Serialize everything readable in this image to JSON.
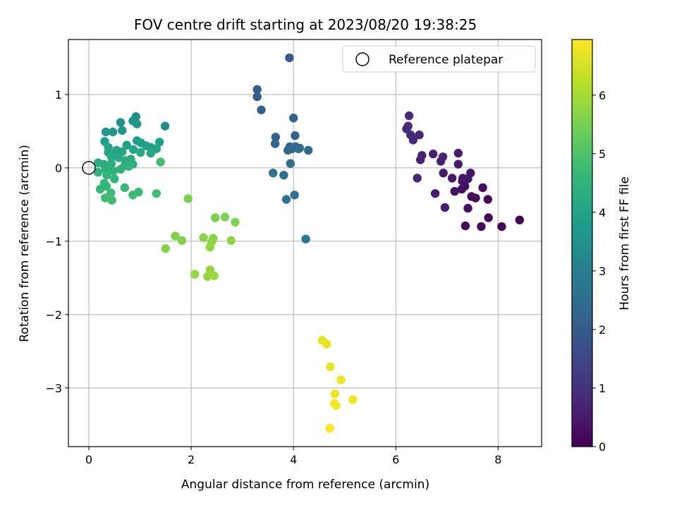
{
  "chart_data": {
    "type": "scatter",
    "title": "FOV centre drift starting at 2023/08/20 19:38:25",
    "xlabel": "Angular distance from reference (arcmin)",
    "ylabel": "Rotation from reference (arcmin)",
    "xlim": [
      -0.4,
      8.85
    ],
    "ylim": [
      -3.8,
      1.75
    ],
    "x_ticks": [
      0,
      2,
      4,
      6,
      8
    ],
    "y_ticks": [
      -3,
      -2,
      -1,
      0,
      1
    ],
    "grid": true,
    "legend": {
      "position": "top-right",
      "entries": [
        "Reference platepar"
      ]
    },
    "reference_point": {
      "name": "Reference platepar",
      "x": 0,
      "y": 0
    },
    "colorbar": {
      "label": "Hours from first FF file",
      "colormap": "viridis",
      "range": [
        0,
        6.95
      ],
      "ticks": [
        0,
        1,
        2,
        3,
        4,
        5,
        6
      ]
    },
    "colormap_stops": [
      "#440154",
      "#482878",
      "#3e4989",
      "#31688e",
      "#26828e",
      "#1f9e89",
      "#35b779",
      "#6ece58",
      "#b5de2b",
      "#fde725"
    ],
    "points": [
      {
        "x": 8.42,
        "y": -0.71,
        "t": 0.02
      },
      {
        "x": 8.07,
        "y": -0.8,
        "t": 0.05
      },
      {
        "x": 7.81,
        "y": -0.68,
        "t": 0.08
      },
      {
        "x": 7.67,
        "y": -0.8,
        "t": 0.1
      },
      {
        "x": 7.36,
        "y": -0.79,
        "t": 0.12
      },
      {
        "x": 7.8,
        "y": -0.43,
        "t": 0.15
      },
      {
        "x": 7.56,
        "y": -0.41,
        "t": 0.18
      },
      {
        "x": 7.48,
        "y": -0.39,
        "t": 0.2
      },
      {
        "x": 7.7,
        "y": -0.27,
        "t": 0.22
      },
      {
        "x": 7.41,
        "y": -0.55,
        "t": 0.25
      },
      {
        "x": 7.29,
        "y": -0.29,
        "t": 0.28
      },
      {
        "x": 7.15,
        "y": -0.32,
        "t": 0.3
      },
      {
        "x": 7.35,
        "y": -0.25,
        "t": 0.32
      },
      {
        "x": 7.3,
        "y": -0.18,
        "t": 0.35
      },
      {
        "x": 7.41,
        "y": -0.15,
        "t": 0.38
      },
      {
        "x": 7.46,
        "y": -0.07,
        "t": 0.4
      },
      {
        "x": 7.31,
        "y": -0.14,
        "t": 0.42
      },
      {
        "x": 7.1,
        "y": -0.14,
        "t": 0.45
      },
      {
        "x": 6.93,
        "y": -0.07,
        "t": 0.48
      },
      {
        "x": 7.22,
        "y": 0.05,
        "t": 0.5
      },
      {
        "x": 6.77,
        "y": -0.35,
        "t": 0.52
      },
      {
        "x": 6.96,
        "y": -0.54,
        "t": 0.55
      },
      {
        "x": 7.22,
        "y": 0.2,
        "t": 0.58
      },
      {
        "x": 6.88,
        "y": 0.09,
        "t": 0.6
      },
      {
        "x": 6.92,
        "y": 0.15,
        "t": 0.62
      },
      {
        "x": 6.73,
        "y": 0.19,
        "t": 0.65
      },
      {
        "x": 6.51,
        "y": 0.17,
        "t": 0.68
      },
      {
        "x": 6.48,
        "y": 0.11,
        "t": 0.7
      },
      {
        "x": 6.42,
        "y": -0.14,
        "t": 0.72
      },
      {
        "x": 6.46,
        "y": 0.45,
        "t": 0.75
      },
      {
        "x": 6.34,
        "y": 0.38,
        "t": 0.78
      },
      {
        "x": 6.29,
        "y": 0.45,
        "t": 0.8
      },
      {
        "x": 6.21,
        "y": 0.53,
        "t": 0.82
      },
      {
        "x": 6.24,
        "y": 0.57,
        "t": 0.85
      },
      {
        "x": 6.26,
        "y": 0.71,
        "t": 0.88
      },
      {
        "x": 3.92,
        "y": 1.5,
        "t": 2.0
      },
      {
        "x": 3.29,
        "y": 1.07,
        "t": 2.05
      },
      {
        "x": 3.29,
        "y": 0.97,
        "t": 2.08
      },
      {
        "x": 3.37,
        "y": 0.79,
        "t": 2.12
      },
      {
        "x": 4.0,
        "y": 0.68,
        "t": 2.15
      },
      {
        "x": 4.03,
        "y": 0.44,
        "t": 2.18
      },
      {
        "x": 3.65,
        "y": 0.42,
        "t": 2.22
      },
      {
        "x": 3.64,
        "y": 0.33,
        "t": 2.25
      },
      {
        "x": 3.89,
        "y": 0.24,
        "t": 2.28
      },
      {
        "x": 3.93,
        "y": 0.29,
        "t": 2.32
      },
      {
        "x": 3.97,
        "y": 0.26,
        "t": 2.35
      },
      {
        "x": 4.04,
        "y": 0.29,
        "t": 2.38
      },
      {
        "x": 4.1,
        "y": 0.26,
        "t": 2.42
      },
      {
        "x": 4.12,
        "y": 0.27,
        "t": 2.45
      },
      {
        "x": 4.29,
        "y": 0.24,
        "t": 2.48
      },
      {
        "x": 3.94,
        "y": 0.06,
        "t": 2.52
      },
      {
        "x": 3.6,
        "y": -0.07,
        "t": 2.55
      },
      {
        "x": 3.81,
        "y": -0.1,
        "t": 2.58
      },
      {
        "x": 4.02,
        "y": -0.37,
        "t": 2.62
      },
      {
        "x": 3.86,
        "y": -0.43,
        "t": 2.65
      },
      {
        "x": 4.24,
        "y": -0.97,
        "t": 2.7
      },
      {
        "x": 1.49,
        "y": 0.57,
        "t": 3.4
      },
      {
        "x": 0.92,
        "y": 0.7,
        "t": 3.45
      },
      {
        "x": 0.62,
        "y": 0.62,
        "t": 3.5
      },
      {
        "x": 0.86,
        "y": 0.64,
        "t": 3.55
      },
      {
        "x": 0.94,
        "y": 0.6,
        "t": 3.6
      },
      {
        "x": 0.47,
        "y": 0.49,
        "t": 3.65
      },
      {
        "x": 0.65,
        "y": 0.51,
        "t": 3.7
      },
      {
        "x": 0.33,
        "y": 0.49,
        "t": 3.75
      },
      {
        "x": 0.31,
        "y": 0.36,
        "t": 3.8
      },
      {
        "x": 0.94,
        "y": 0.37,
        "t": 3.85
      },
      {
        "x": 1.02,
        "y": 0.34,
        "t": 3.88
      },
      {
        "x": 1.12,
        "y": 0.3,
        "t": 3.9
      },
      {
        "x": 1.21,
        "y": 0.28,
        "t": 3.92
      },
      {
        "x": 1.38,
        "y": 0.35,
        "t": 3.95
      },
      {
        "x": 1.32,
        "y": 0.26,
        "t": 3.98
      },
      {
        "x": 0.74,
        "y": 0.31,
        "t": 4.0
      },
      {
        "x": 0.54,
        "y": 0.24,
        "t": 4.02
      },
      {
        "x": 0.38,
        "y": 0.28,
        "t": 4.05
      },
      {
        "x": 0.38,
        "y": 0.21,
        "t": 4.08
      },
      {
        "x": 0.65,
        "y": 0.22,
        "t": 4.1
      },
      {
        "x": 0.87,
        "y": 0.25,
        "t": 4.12
      },
      {
        "x": 1.01,
        "y": 0.21,
        "t": 4.15
      },
      {
        "x": 1.21,
        "y": 0.2,
        "t": 4.18
      },
      {
        "x": 0.44,
        "y": 0.15,
        "t": 4.2
      },
      {
        "x": 0.58,
        "y": 0.14,
        "t": 4.22
      },
      {
        "x": 0.71,
        "y": 0.1,
        "t": 4.25
      },
      {
        "x": 0.82,
        "y": 0.12,
        "t": 4.28
      },
      {
        "x": 0.18,
        "y": 0.07,
        "t": 4.3
      },
      {
        "x": 0.29,
        "y": 0.05,
        "t": 4.32
      },
      {
        "x": 0.44,
        "y": 0.06,
        "t": 4.35
      },
      {
        "x": 0.7,
        "y": 0.03,
        "t": 4.38
      },
      {
        "x": 0.86,
        "y": 0.05,
        "t": 4.4
      },
      {
        "x": 0.33,
        "y": -0.02,
        "t": 4.42
      },
      {
        "x": 0.48,
        "y": -0.04,
        "t": 4.45
      },
      {
        "x": 0.62,
        "y": -0.02,
        "t": 4.48
      },
      {
        "x": 0.78,
        "y": 0.02,
        "t": 4.5
      },
      {
        "x": 0.18,
        "y": -0.06,
        "t": 4.52
      },
      {
        "x": 0.35,
        "y": -0.1,
        "t": 4.55
      },
      {
        "x": 0.5,
        "y": -0.15,
        "t": 4.58
      },
      {
        "x": 0.3,
        "y": -0.21,
        "t": 4.6
      },
      {
        "x": 0.34,
        "y": -0.25,
        "t": 4.62
      },
      {
        "x": 0.22,
        "y": -0.29,
        "t": 4.65
      },
      {
        "x": 0.7,
        "y": -0.27,
        "t": 4.68
      },
      {
        "x": 0.97,
        "y": -0.33,
        "t": 4.7
      },
      {
        "x": 0.86,
        "y": -0.37,
        "t": 4.72
      },
      {
        "x": 0.43,
        "y": -0.34,
        "t": 4.75
      },
      {
        "x": 0.32,
        "y": -0.41,
        "t": 4.78
      },
      {
        "x": 0.45,
        "y": -0.44,
        "t": 4.8
      },
      {
        "x": 1.32,
        "y": -0.35,
        "t": 4.82
      },
      {
        "x": 1.4,
        "y": 0.08,
        "t": 4.85
      },
      {
        "x": 1.94,
        "y": -0.42,
        "t": 5.5
      },
      {
        "x": 2.47,
        "y": -0.68,
        "t": 5.52
      },
      {
        "x": 2.66,
        "y": -0.67,
        "t": 5.55
      },
      {
        "x": 2.86,
        "y": -0.74,
        "t": 5.58
      },
      {
        "x": 1.69,
        "y": -0.93,
        "t": 5.6
      },
      {
        "x": 1.82,
        "y": -0.99,
        "t": 5.62
      },
      {
        "x": 1.5,
        "y": -1.1,
        "t": 5.65
      },
      {
        "x": 2.24,
        "y": -0.95,
        "t": 5.68
      },
      {
        "x": 2.43,
        "y": -0.96,
        "t": 5.7
      },
      {
        "x": 2.4,
        "y": -1.01,
        "t": 5.72
      },
      {
        "x": 2.78,
        "y": -0.99,
        "t": 5.75
      },
      {
        "x": 2.37,
        "y": -1.08,
        "t": 5.78
      },
      {
        "x": 2.07,
        "y": -1.45,
        "t": 5.8
      },
      {
        "x": 2.37,
        "y": -1.39,
        "t": 5.82
      },
      {
        "x": 2.32,
        "y": -1.48,
        "t": 5.85
      },
      {
        "x": 2.45,
        "y": -1.47,
        "t": 5.88
      },
      {
        "x": 4.56,
        "y": -2.35,
        "t": 6.7
      },
      {
        "x": 4.65,
        "y": -2.4,
        "t": 6.72
      },
      {
        "x": 4.72,
        "y": -2.71,
        "t": 6.75
      },
      {
        "x": 4.93,
        "y": -2.89,
        "t": 6.78
      },
      {
        "x": 4.81,
        "y": -3.08,
        "t": 6.8
      },
      {
        "x": 5.16,
        "y": -3.16,
        "t": 6.82
      },
      {
        "x": 4.8,
        "y": -3.21,
        "t": 6.85
      },
      {
        "x": 4.83,
        "y": -3.24,
        "t": 6.88
      },
      {
        "x": 4.71,
        "y": -3.55,
        "t": 6.92
      }
    ]
  }
}
